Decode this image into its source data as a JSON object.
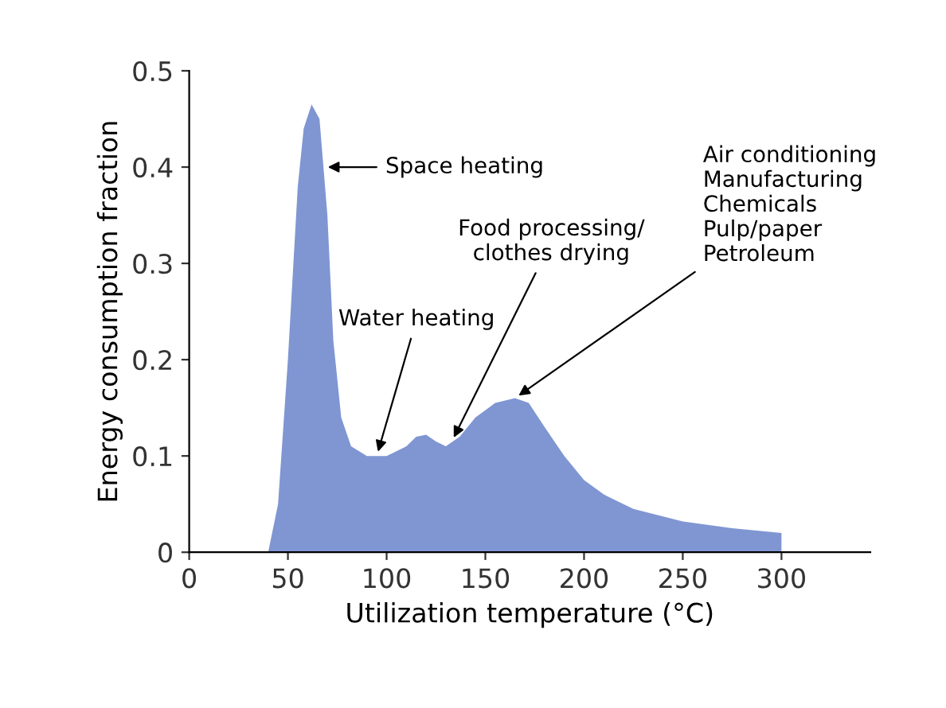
{
  "chart_data": {
    "type": "area",
    "xlabel": "Utilization temperature (°C)",
    "ylabel": "Energy consumption fraction",
    "x": [
      40,
      45,
      50,
      55,
      58,
      62,
      66,
      70,
      73,
      77,
      82,
      90,
      100,
      110,
      115,
      120,
      125,
      130,
      137,
      145,
      155,
      165,
      172,
      180,
      190,
      200,
      210,
      225,
      250,
      275,
      300
    ],
    "series": [
      {
        "color": "#7f96d2",
        "values": [
          0,
          0.05,
          0.2,
          0.38,
          0.44,
          0.465,
          0.45,
          0.35,
          0.22,
          0.14,
          0.11,
          0.1,
          0.1,
          0.11,
          0.12,
          0.122,
          0.115,
          0.11,
          0.12,
          0.14,
          0.155,
          0.16,
          0.155,
          0.13,
          0.1,
          0.075,
          0.06,
          0.045,
          0.032,
          0.025,
          0.02
        ]
      }
    ],
    "xlim": [
      0,
      345
    ],
    "xticks": [
      0,
      50,
      100,
      150,
      200,
      250,
      300
    ],
    "ylim": [
      0,
      0.5
    ],
    "yticks": [
      0,
      0.1,
      0.2,
      0.3,
      0.4,
      0.5
    ],
    "grid": false,
    "annotations": [
      {
        "text": "Space heating",
        "x": 68,
        "y": 0.4
      },
      {
        "text": "Water heating",
        "x": 95,
        "y": 0.1
      },
      {
        "text": "Food processing/\nclothes drying",
        "x": 133,
        "y": 0.115
      },
      {
        "text": "Air conditioning\nManufacturing\nChemicals\nPulp/paper\nPetroleum",
        "x": 165,
        "y": 0.16
      }
    ]
  }
}
